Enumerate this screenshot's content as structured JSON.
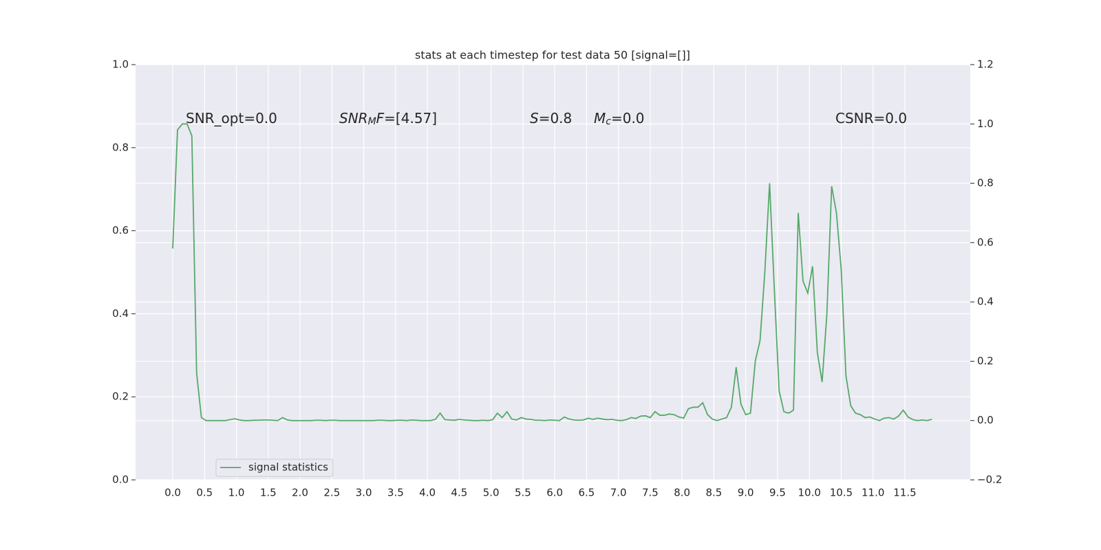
{
  "chart_data": {
    "type": "line",
    "title": "stats at each timestep for test data 50 [signal=[]]",
    "annotations": [
      [
        {
          "text": "SNR_opt=0.0",
          "style": "normal"
        }
      ],
      [
        {
          "text": "SNR",
          "style": "italic"
        },
        {
          "text": "M",
          "style": "italic-sub"
        },
        {
          "text": "F",
          "style": "italic"
        },
        {
          "text": "=[4.57]",
          "style": "normal"
        }
      ],
      [
        {
          "text": "S",
          "style": "italic"
        },
        {
          "text": "=0.8",
          "style": "normal"
        }
      ],
      [
        {
          "text": "M",
          "style": "italic"
        },
        {
          "text": "c",
          "style": "italic-sub"
        },
        {
          "text": "=0.0",
          "style": "normal"
        }
      ],
      [
        {
          "text": "CSNR=0.0",
          "style": "normal"
        }
      ]
    ],
    "xlim": [
      -0.584,
      12.527
    ],
    "xticks": [
      {
        "value": 0,
        "label": "0.0"
      },
      0.5,
      {
        "value": 1,
        "label": "1.0"
      },
      1.5,
      {
        "value": 2,
        "label": "2.0"
      },
      2.5,
      {
        "value": 3,
        "label": "3.0"
      },
      3.5,
      {
        "value": 4,
        "label": "4.0"
      },
      4.5,
      {
        "value": 5,
        "label": "5.0"
      },
      5.5,
      {
        "value": 6,
        "label": "6.0"
      },
      6.5,
      {
        "value": 7,
        "label": "7.0"
      },
      7.5,
      {
        "value": 8,
        "label": "8.0"
      },
      8.5,
      {
        "value": 9,
        "label": "9.0"
      },
      9.5,
      {
        "value": 10,
        "label": "10.0"
      },
      10.5,
      {
        "value": 11,
        "label": "11.0"
      },
      11.5
    ],
    "ylim": [
      0,
      1
    ],
    "yticks": [
      {
        "value": 0,
        "label": "0.0"
      },
      0.2,
      0.4,
      0.6,
      0.8,
      {
        "value": 1,
        "label": "1.0"
      }
    ],
    "y2lim": [
      -0.2,
      1.2
    ],
    "y2ticks": [
      {
        "value": -0.2,
        "label": "−0.2"
      },
      {
        "value": 0,
        "label": "0.0"
      },
      0.2,
      0.4,
      0.6,
      0.8,
      {
        "value": 1,
        "label": "1.0"
      },
      1.2
    ],
    "grid": true,
    "legend": "lower left",
    "x": [
      0,
      0.075,
      0.15,
      0.225,
      0.3,
      0.375,
      0.45,
      0.525,
      0.6,
      0.675,
      0.75,
      0.825,
      0.9,
      0.975,
      1.05,
      1.125,
      1.2,
      1.275,
      1.35,
      1.425,
      1.5,
      1.575,
      1.65,
      1.725,
      1.8,
      1.875,
      1.95,
      2.025,
      2.1,
      2.175,
      2.25,
      2.325,
      2.4,
      2.475,
      2.55,
      2.625,
      2.7,
      2.775,
      2.85,
      2.925,
      3,
      3.075,
      3.15,
      3.225,
      3.3,
      3.375,
      3.45,
      3.525,
      3.6,
      3.675,
      3.75,
      3.825,
      3.9,
      3.975,
      4.05,
      4.125,
      4.2,
      4.275,
      4.35,
      4.425,
      4.5,
      4.575,
      4.65,
      4.725,
      4.8,
      4.875,
      4.95,
      5.025,
      5.1,
      5.175,
      5.25,
      5.325,
      5.4,
      5.475,
      5.55,
      5.625,
      5.7,
      5.775,
      5.85,
      5.925,
      6,
      6.075,
      6.15,
      6.225,
      6.3,
      6.375,
      6.45,
      6.525,
      6.6,
      6.675,
      6.75,
      6.825,
      6.9,
      6.975,
      7.05,
      7.125,
      7.2,
      7.275,
      7.35,
      7.425,
      7.5,
      7.575,
      7.65,
      7.725,
      7.8,
      7.875,
      7.95,
      8.025,
      8.1,
      8.175,
      8.25,
      8.325,
      8.4,
      8.475,
      8.55,
      8.625,
      8.7,
      8.775,
      8.85,
      8.925,
      9,
      9.075,
      9.15,
      9.225,
      9.3,
      9.375,
      9.45,
      9.525,
      9.6,
      9.675,
      9.75,
      9.825,
      9.9,
      9.975,
      10.05,
      10.125,
      10.2,
      10.275,
      10.35,
      10.425,
      10.5,
      10.575,
      10.65,
      10.725,
      10.8,
      10.875,
      10.95,
      11.025,
      11.1,
      11.175,
      11.25,
      11.325,
      11.4,
      11.475,
      11.55,
      11.625,
      11.7,
      11.775,
      11.85,
      11.925
    ],
    "series": [
      {
        "name": "signal statistics",
        "color": "#55a868",
        "axis": "y2",
        "values": [
          0.58,
          0.98,
          1.0,
          1.0,
          0.96,
          0.16,
          0.01,
          0.0,
          0.0,
          0.0,
          0.0,
          0.0,
          0.003,
          0.006,
          0.002,
          0.0,
          0.0,
          0.001,
          0.001,
          0.002,
          0.002,
          0.001,
          0.0,
          0.01,
          0.002,
          0.0,
          0.0,
          0.0,
          0.0,
          0.0,
          0.001,
          0.001,
          0.0,
          0.001,
          0.001,
          0.0,
          0.0,
          0.0,
          0.0,
          0.0,
          0.0,
          0.0,
          0.0,
          0.001,
          0.001,
          0.0,
          0.0,
          0.001,
          0.001,
          0.0,
          0.002,
          0.001,
          0.0,
          0.0,
          0.0,
          0.004,
          0.025,
          0.003,
          0.002,
          0.001,
          0.004,
          0.002,
          0.001,
          0.0,
          0.0,
          0.001,
          0.0,
          0.003,
          0.025,
          0.01,
          0.03,
          0.005,
          0.002,
          0.01,
          0.005,
          0.004,
          0.001,
          0.001,
          0.0,
          0.002,
          0.001,
          0.0,
          0.012,
          0.005,
          0.002,
          0.001,
          0.002,
          0.008,
          0.004,
          0.008,
          0.005,
          0.003,
          0.004,
          0.001,
          0.0,
          0.003,
          0.01,
          0.007,
          0.015,
          0.016,
          0.01,
          0.03,
          0.018,
          0.018,
          0.022,
          0.02,
          0.012,
          0.008,
          0.04,
          0.045,
          0.045,
          0.06,
          0.02,
          0.005,
          0.0,
          0.005,
          0.01,
          0.045,
          0.18,
          0.055,
          0.02,
          0.025,
          0.2,
          0.27,
          0.5,
          0.8,
          0.44,
          0.1,
          0.03,
          0.025,
          0.035,
          0.7,
          0.47,
          0.43,
          0.52,
          0.23,
          0.13,
          0.36,
          0.79,
          0.7,
          0.51,
          0.15,
          0.05,
          0.025,
          0.02,
          0.01,
          0.012,
          0.005,
          0.0,
          0.008,
          0.01,
          0.005,
          0.015,
          0.035,
          0.012,
          0.003,
          0.0,
          0.002,
          0.0,
          0.004
        ]
      }
    ]
  }
}
